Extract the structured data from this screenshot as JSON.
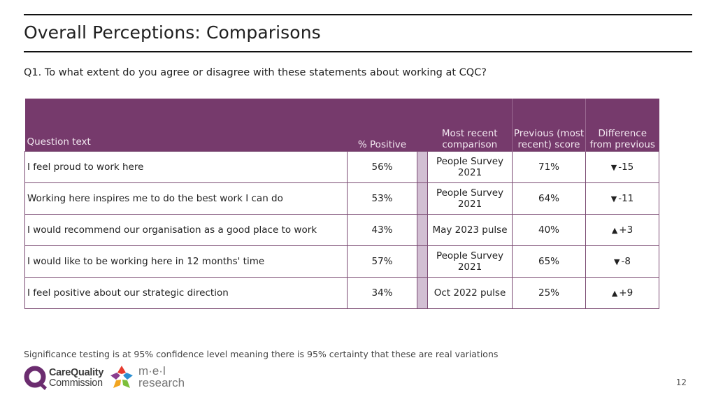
{
  "header": {
    "title": "Overall Perceptions: Comparisons",
    "question": "Q1. To what extent do you agree or disagree with these statements about working at CQC?"
  },
  "table": {
    "columns": {
      "question_text": "Question text",
      "pct_positive": "% Positive",
      "comparison": "Most recent comparison",
      "previous_score": "Previous (most recent) score",
      "difference": "Difference from previous"
    },
    "rows": [
      {
        "question": "I feel proud to work here",
        "pct": "56%",
        "comparison": "People Survey 2021",
        "previous": "71%",
        "direction": "down",
        "arrow": "▼",
        "diff": "-15"
      },
      {
        "question": "Working here inspires me to do the best work I can do",
        "pct": "53%",
        "comparison": "People Survey 2021",
        "previous": "64%",
        "direction": "down",
        "arrow": "▼",
        "diff": "-11"
      },
      {
        "question": "I would recommend our organisation as a good place to work",
        "pct": "43%",
        "comparison": "May 2023 pulse",
        "previous": "40%",
        "direction": "up",
        "arrow": "▲",
        "diff": "+3"
      },
      {
        "question": "I would like to be working here in 12 months' time",
        "pct": "57%",
        "comparison": "People Survey 2021",
        "previous": "65%",
        "direction": "down",
        "arrow": "▼",
        "diff": "-8"
      },
      {
        "question": "I feel positive about our strategic direction",
        "pct": "34%",
        "comparison": "Oct 2022 pulse",
        "previous": "25%",
        "direction": "up",
        "arrow": "▲",
        "diff": "+9"
      }
    ]
  },
  "footer": {
    "note": "Significance testing is at 95% confidence level meaning there is 95% certainty that these are real variations",
    "page_number": "12",
    "logos": {
      "cqc": {
        "line1": "CareQuality",
        "line2": "Commission"
      },
      "mel": {
        "line1": "m·e·l",
        "line2": "research"
      }
    }
  },
  "colors": {
    "header_purple": "#763a6c",
    "swatch_lilac": "#d2bfd3",
    "cqc_purple": "#6b2c6f"
  }
}
